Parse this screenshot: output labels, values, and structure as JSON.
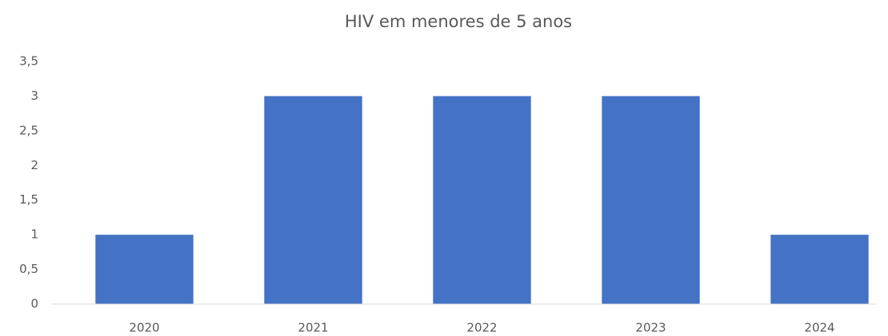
{
  "chart_data": {
    "type": "bar",
    "title": "HIV em menores de 5 anos",
    "categories": [
      "2020",
      "2021",
      "2022",
      "2023",
      "2024"
    ],
    "values": [
      1,
      3,
      3,
      3,
      1
    ],
    "color": "#4472c4",
    "ylim": [
      0,
      3.5
    ],
    "yticks": [
      0,
      {
        "value": 0.5,
        "label": "0,5"
      },
      1,
      {
        "value": 1.5,
        "label": "1,5"
      },
      2,
      {
        "value": 2.5,
        "label": "2,5"
      },
      3,
      {
        "value": 3.5,
        "label": "3,5"
      }
    ],
    "grid": false
  }
}
